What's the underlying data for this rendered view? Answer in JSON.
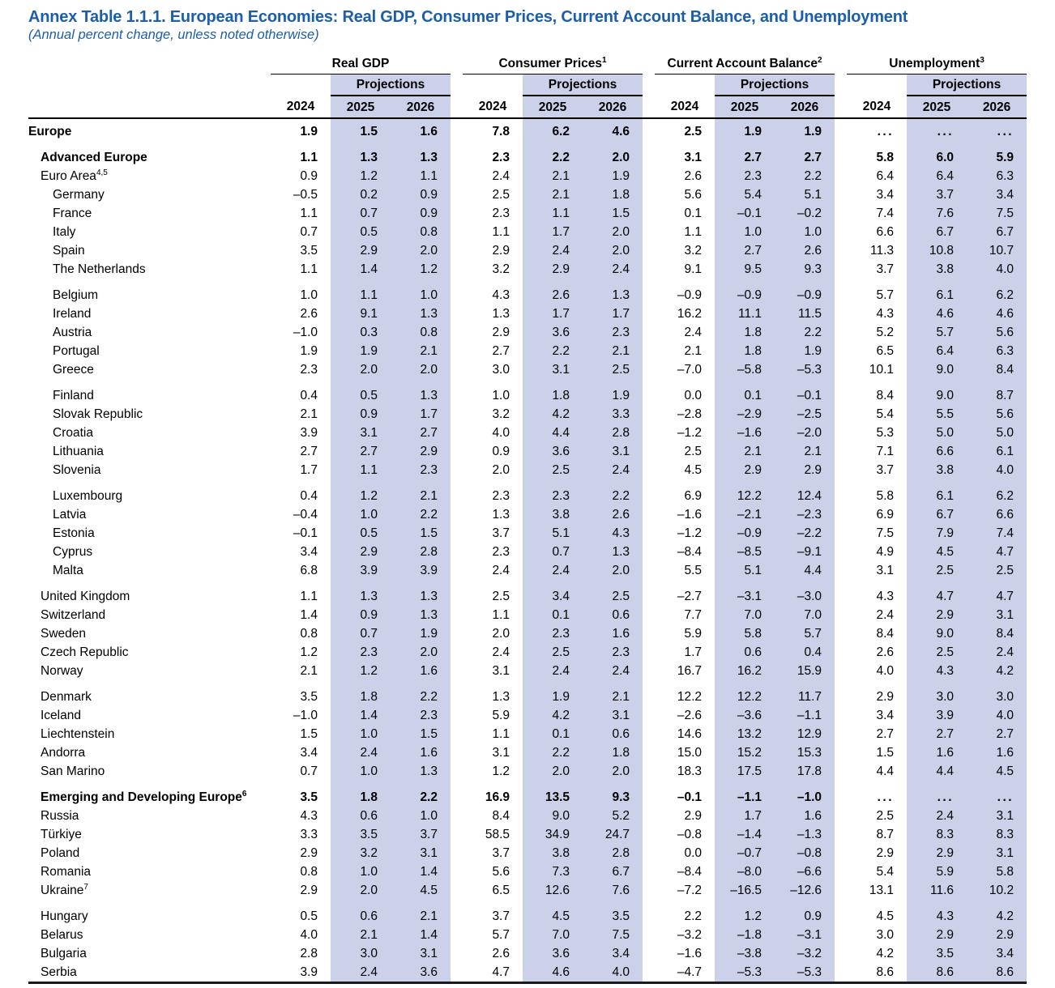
{
  "title": "Annex Table 1.1.1. European Economies: Real GDP, Consumer Prices, Current Account Balance, and Unemployment",
  "subtitle": "(Annual percent change, unless noted otherwise)",
  "colors": {
    "title_blue": "#1C5EA9",
    "projection_shade": "#CAD1E9"
  },
  "header": {
    "groups": [
      {
        "label": "Real GDP",
        "sup": ""
      },
      {
        "label": "Consumer Prices",
        "sup": "1"
      },
      {
        "label": "Current Account Balance",
        "sup": "2"
      },
      {
        "label": "Unemployment",
        "sup": "3"
      }
    ],
    "projections_label": "Projections",
    "years": [
      "2024",
      "2025",
      "2026"
    ]
  },
  "rows": [
    {
      "name": "Europe",
      "sup": "",
      "bold": true,
      "indent": 0,
      "gap_before": false,
      "values": [
        "1.9",
        "1.5",
        "1.6",
        "7.8",
        "6.2",
        "4.6",
        "2.5",
        "1.9",
        "1.9",
        "...",
        "...",
        "..."
      ]
    },
    {
      "name": "Advanced Europe",
      "sup": "",
      "bold": true,
      "indent": 1,
      "gap_before": true,
      "values": [
        "1.1",
        "1.3",
        "1.3",
        "2.3",
        "2.2",
        "2.0",
        "3.1",
        "2.7",
        "2.7",
        "5.8",
        "6.0",
        "5.9"
      ]
    },
    {
      "name": "Euro Area",
      "sup": "4,5",
      "bold": false,
      "indent": 1,
      "gap_before": false,
      "values": [
        "0.9",
        "1.2",
        "1.1",
        "2.4",
        "2.1",
        "1.9",
        "2.6",
        "2.3",
        "2.2",
        "6.4",
        "6.4",
        "6.3"
      ]
    },
    {
      "name": "Germany",
      "sup": "",
      "bold": false,
      "indent": 2,
      "gap_before": false,
      "values": [
        "–0.5",
        "0.2",
        "0.9",
        "2.5",
        "2.1",
        "1.8",
        "5.6",
        "5.4",
        "5.1",
        "3.4",
        "3.7",
        "3.4"
      ]
    },
    {
      "name": "France",
      "sup": "",
      "bold": false,
      "indent": 2,
      "gap_before": false,
      "values": [
        "1.1",
        "0.7",
        "0.9",
        "2.3",
        "1.1",
        "1.5",
        "0.1",
        "–0.1",
        "–0.2",
        "7.4",
        "7.6",
        "7.5"
      ]
    },
    {
      "name": "Italy",
      "sup": "",
      "bold": false,
      "indent": 2,
      "gap_before": false,
      "values": [
        "0.7",
        "0.5",
        "0.8",
        "1.1",
        "1.7",
        "2.0",
        "1.1",
        "1.0",
        "1.0",
        "6.6",
        "6.7",
        "6.7"
      ]
    },
    {
      "name": "Spain",
      "sup": "",
      "bold": false,
      "indent": 2,
      "gap_before": false,
      "values": [
        "3.5",
        "2.9",
        "2.0",
        "2.9",
        "2.4",
        "2.0",
        "3.2",
        "2.7",
        "2.6",
        "11.3",
        "10.8",
        "10.7"
      ]
    },
    {
      "name": "The Netherlands",
      "sup": "",
      "bold": false,
      "indent": 2,
      "gap_before": false,
      "values": [
        "1.1",
        "1.4",
        "1.2",
        "3.2",
        "2.9",
        "2.4",
        "9.1",
        "9.5",
        "9.3",
        "3.7",
        "3.8",
        "4.0"
      ]
    },
    {
      "name": "Belgium",
      "sup": "",
      "bold": false,
      "indent": 2,
      "gap_before": true,
      "values": [
        "1.0",
        "1.1",
        "1.0",
        "4.3",
        "2.6",
        "1.3",
        "–0.9",
        "–0.9",
        "–0.9",
        "5.7",
        "6.1",
        "6.2"
      ]
    },
    {
      "name": "Ireland",
      "sup": "",
      "bold": false,
      "indent": 2,
      "gap_before": false,
      "values": [
        "2.6",
        "9.1",
        "1.3",
        "1.3",
        "1.7",
        "1.7",
        "16.2",
        "11.1",
        "11.5",
        "4.3",
        "4.6",
        "4.6"
      ]
    },
    {
      "name": "Austria",
      "sup": "",
      "bold": false,
      "indent": 2,
      "gap_before": false,
      "values": [
        "–1.0",
        "0.3",
        "0.8",
        "2.9",
        "3.6",
        "2.3",
        "2.4",
        "1.8",
        "2.2",
        "5.2",
        "5.7",
        "5.6"
      ]
    },
    {
      "name": "Portugal",
      "sup": "",
      "bold": false,
      "indent": 2,
      "gap_before": false,
      "values": [
        "1.9",
        "1.9",
        "2.1",
        "2.7",
        "2.2",
        "2.1",
        "2.1",
        "1.8",
        "1.9",
        "6.5",
        "6.4",
        "6.3"
      ]
    },
    {
      "name": "Greece",
      "sup": "",
      "bold": false,
      "indent": 2,
      "gap_before": false,
      "values": [
        "2.3",
        "2.0",
        "2.0",
        "3.0",
        "3.1",
        "2.5",
        "–7.0",
        "–5.8",
        "–5.3",
        "10.1",
        "9.0",
        "8.4"
      ]
    },
    {
      "name": "Finland",
      "sup": "",
      "bold": false,
      "indent": 2,
      "gap_before": true,
      "values": [
        "0.4",
        "0.5",
        "1.3",
        "1.0",
        "1.8",
        "1.9",
        "0.0",
        "0.1",
        "–0.1",
        "8.4",
        "9.0",
        "8.7"
      ]
    },
    {
      "name": "Slovak Republic",
      "sup": "",
      "bold": false,
      "indent": 2,
      "gap_before": false,
      "values": [
        "2.1",
        "0.9",
        "1.7",
        "3.2",
        "4.2",
        "3.3",
        "–2.8",
        "–2.9",
        "–2.5",
        "5.4",
        "5.5",
        "5.6"
      ]
    },
    {
      "name": "Croatia",
      "sup": "",
      "bold": false,
      "indent": 2,
      "gap_before": false,
      "values": [
        "3.9",
        "3.1",
        "2.7",
        "4.0",
        "4.4",
        "2.8",
        "–1.2",
        "–1.6",
        "–2.0",
        "5.3",
        "5.0",
        "5.0"
      ]
    },
    {
      "name": "Lithuania",
      "sup": "",
      "bold": false,
      "indent": 2,
      "gap_before": false,
      "values": [
        "2.7",
        "2.7",
        "2.9",
        "0.9",
        "3.6",
        "3.1",
        "2.5",
        "2.1",
        "2.1",
        "7.1",
        "6.6",
        "6.1"
      ]
    },
    {
      "name": "Slovenia",
      "sup": "",
      "bold": false,
      "indent": 2,
      "gap_before": false,
      "values": [
        "1.7",
        "1.1",
        "2.3",
        "2.0",
        "2.5",
        "2.4",
        "4.5",
        "2.9",
        "2.9",
        "3.7",
        "3.8",
        "4.0"
      ]
    },
    {
      "name": "Luxembourg",
      "sup": "",
      "bold": false,
      "indent": 2,
      "gap_before": true,
      "values": [
        "0.4",
        "1.2",
        "2.1",
        "2.3",
        "2.3",
        "2.2",
        "6.9",
        "12.2",
        "12.4",
        "5.8",
        "6.1",
        "6.2"
      ]
    },
    {
      "name": "Latvia",
      "sup": "",
      "bold": false,
      "indent": 2,
      "gap_before": false,
      "values": [
        "–0.4",
        "1.0",
        "2.2",
        "1.3",
        "3.8",
        "2.6",
        "–1.6",
        "–2.1",
        "–2.3",
        "6.9",
        "6.7",
        "6.6"
      ]
    },
    {
      "name": "Estonia",
      "sup": "",
      "bold": false,
      "indent": 2,
      "gap_before": false,
      "values": [
        "–0.1",
        "0.5",
        "1.5",
        "3.7",
        "5.1",
        "4.3",
        "–1.2",
        "–0.9",
        "–2.2",
        "7.5",
        "7.9",
        "7.4"
      ]
    },
    {
      "name": "Cyprus",
      "sup": "",
      "bold": false,
      "indent": 2,
      "gap_before": false,
      "values": [
        "3.4",
        "2.9",
        "2.8",
        "2.3",
        "0.7",
        "1.3",
        "–8.4",
        "–8.5",
        "–9.1",
        "4.9",
        "4.5",
        "4.7"
      ]
    },
    {
      "name": "Malta",
      "sup": "",
      "bold": false,
      "indent": 2,
      "gap_before": false,
      "values": [
        "6.8",
        "3.9",
        "3.9",
        "2.4",
        "2.4",
        "2.0",
        "5.5",
        "5.1",
        "4.4",
        "3.1",
        "2.5",
        "2.5"
      ]
    },
    {
      "name": "United Kingdom",
      "sup": "",
      "bold": false,
      "indent": 1,
      "gap_before": true,
      "values": [
        "1.1",
        "1.3",
        "1.3",
        "2.5",
        "3.4",
        "2.5",
        "–2.7",
        "–3.1",
        "–3.0",
        "4.3",
        "4.7",
        "4.7"
      ]
    },
    {
      "name": "Switzerland",
      "sup": "",
      "bold": false,
      "indent": 1,
      "gap_before": false,
      "values": [
        "1.4",
        "0.9",
        "1.3",
        "1.1",
        "0.1",
        "0.6",
        "7.7",
        "7.0",
        "7.0",
        "2.4",
        "2.9",
        "3.1"
      ]
    },
    {
      "name": "Sweden",
      "sup": "",
      "bold": false,
      "indent": 1,
      "gap_before": false,
      "values": [
        "0.8",
        "0.7",
        "1.9",
        "2.0",
        "2.3",
        "1.6",
        "5.9",
        "5.8",
        "5.7",
        "8.4",
        "9.0",
        "8.4"
      ]
    },
    {
      "name": "Czech Republic",
      "sup": "",
      "bold": false,
      "indent": 1,
      "gap_before": false,
      "values": [
        "1.2",
        "2.3",
        "2.0",
        "2.4",
        "2.5",
        "2.3",
        "1.7",
        "0.6",
        "0.4",
        "2.6",
        "2.5",
        "2.4"
      ]
    },
    {
      "name": "Norway",
      "sup": "",
      "bold": false,
      "indent": 1,
      "gap_before": false,
      "values": [
        "2.1",
        "1.2",
        "1.6",
        "3.1",
        "2.4",
        "2.4",
        "16.7",
        "16.2",
        "15.9",
        "4.0",
        "4.3",
        "4.2"
      ]
    },
    {
      "name": "Denmark",
      "sup": "",
      "bold": false,
      "indent": 1,
      "gap_before": true,
      "values": [
        "3.5",
        "1.8",
        "2.2",
        "1.3",
        "1.9",
        "2.1",
        "12.2",
        "12.2",
        "11.7",
        "2.9",
        "3.0",
        "3.0"
      ]
    },
    {
      "name": "Iceland",
      "sup": "",
      "bold": false,
      "indent": 1,
      "gap_before": false,
      "values": [
        "–1.0",
        "1.4",
        "2.3",
        "5.9",
        "4.2",
        "3.1",
        "–2.6",
        "–3.6",
        "–1.1",
        "3.4",
        "3.9",
        "4.0"
      ]
    },
    {
      "name": "Liechtenstein",
      "sup": "",
      "bold": false,
      "indent": 1,
      "gap_before": false,
      "values": [
        "1.5",
        "1.0",
        "1.5",
        "1.1",
        "0.1",
        "0.6",
        "14.6",
        "13.2",
        "12.9",
        "2.7",
        "2.7",
        "2.7"
      ]
    },
    {
      "name": "Andorra",
      "sup": "",
      "bold": false,
      "indent": 1,
      "gap_before": false,
      "values": [
        "3.4",
        "2.4",
        "1.6",
        "3.1",
        "2.2",
        "1.8",
        "15.0",
        "15.2",
        "15.3",
        "1.5",
        "1.6",
        "1.6"
      ]
    },
    {
      "name": "San Marino",
      "sup": "",
      "bold": false,
      "indent": 1,
      "gap_before": false,
      "values": [
        "0.7",
        "1.0",
        "1.3",
        "1.2",
        "2.0",
        "2.0",
        "18.3",
        "17.5",
        "17.8",
        "4.4",
        "4.4",
        "4.5"
      ]
    },
    {
      "name": "Emerging and Developing Europe",
      "sup": "6",
      "bold": true,
      "indent": 1,
      "gap_before": true,
      "values": [
        "3.5",
        "1.8",
        "2.2",
        "16.9",
        "13.5",
        "9.3",
        "–0.1",
        "–1.1",
        "–1.0",
        "...",
        "...",
        "..."
      ]
    },
    {
      "name": "Russia",
      "sup": "",
      "bold": false,
      "indent": 1,
      "gap_before": false,
      "values": [
        "4.3",
        "0.6",
        "1.0",
        "8.4",
        "9.0",
        "5.2",
        "2.9",
        "1.7",
        "1.6",
        "2.5",
        "2.4",
        "3.1"
      ]
    },
    {
      "name": "Türkiye",
      "sup": "",
      "bold": false,
      "indent": 1,
      "gap_before": false,
      "values": [
        "3.3",
        "3.5",
        "3.7",
        "58.5",
        "34.9",
        "24.7",
        "–0.8",
        "–1.4",
        "–1.3",
        "8.7",
        "8.3",
        "8.3"
      ]
    },
    {
      "name": "Poland",
      "sup": "",
      "bold": false,
      "indent": 1,
      "gap_before": false,
      "values": [
        "2.9",
        "3.2",
        "3.1",
        "3.7",
        "3.8",
        "2.8",
        "0.0",
        "–0.7",
        "–0.8",
        "2.9",
        "2.9",
        "3.1"
      ]
    },
    {
      "name": "Romania",
      "sup": "",
      "bold": false,
      "indent": 1,
      "gap_before": false,
      "values": [
        "0.8",
        "1.0",
        "1.4",
        "5.6",
        "7.3",
        "6.7",
        "–8.4",
        "–8.0",
        "–6.6",
        "5.4",
        "5.9",
        "5.8"
      ]
    },
    {
      "name": "Ukraine",
      "sup": "7",
      "bold": false,
      "indent": 1,
      "gap_before": false,
      "values": [
        "2.9",
        "2.0",
        "4.5",
        "6.5",
        "12.6",
        "7.6",
        "–7.2",
        "–16.5",
        "–12.6",
        "13.1",
        "11.6",
        "10.2"
      ]
    },
    {
      "name": "Hungary",
      "sup": "",
      "bold": false,
      "indent": 1,
      "gap_before": true,
      "values": [
        "0.5",
        "0.6",
        "2.1",
        "3.7",
        "4.5",
        "3.5",
        "2.2",
        "1.2",
        "0.9",
        "4.5",
        "4.3",
        "4.2"
      ]
    },
    {
      "name": "Belarus",
      "sup": "",
      "bold": false,
      "indent": 1,
      "gap_before": false,
      "values": [
        "4.0",
        "2.1",
        "1.4",
        "5.7",
        "7.0",
        "7.5",
        "–3.2",
        "–1.8",
        "–3.1",
        "3.0",
        "2.9",
        "2.9"
      ]
    },
    {
      "name": "Bulgaria",
      "sup": "",
      "bold": false,
      "indent": 1,
      "gap_before": false,
      "values": [
        "2.8",
        "3.0",
        "3.1",
        "2.6",
        "3.6",
        "3.4",
        "–1.6",
        "–3.8",
        "–3.2",
        "4.2",
        "3.5",
        "3.4"
      ]
    },
    {
      "name": "Serbia",
      "sup": "",
      "bold": false,
      "indent": 1,
      "gap_before": false,
      "values": [
        "3.9",
        "2.4",
        "3.6",
        "4.7",
        "4.6",
        "4.0",
        "–4.7",
        "–5.3",
        "–5.3",
        "8.6",
        "8.6",
        "8.6"
      ]
    }
  ]
}
